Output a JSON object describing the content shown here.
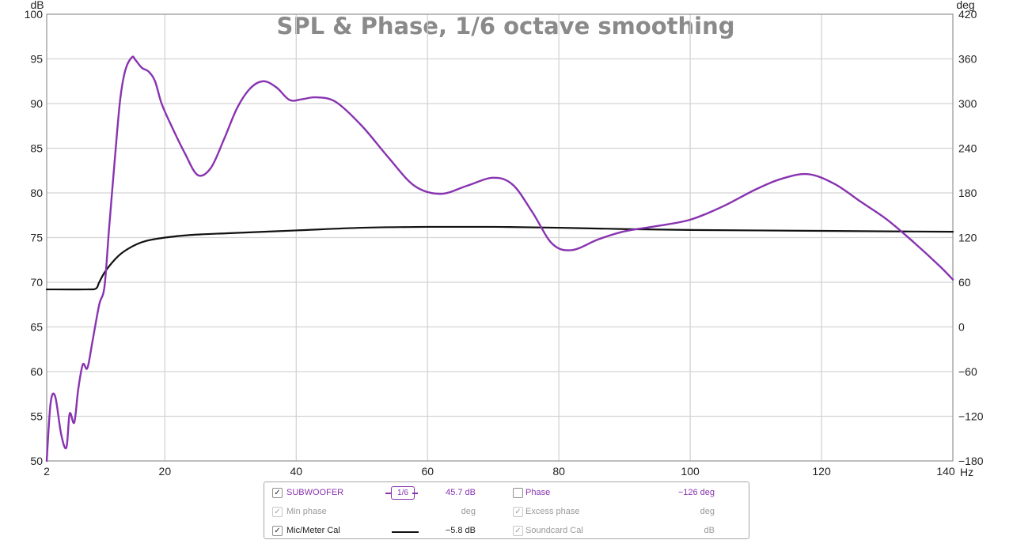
{
  "chart_data": {
    "type": "line",
    "title": "SPL & Phase, 1/6 octave smoothing",
    "y_unit_left": "dB",
    "y_unit_right": "deg",
    "x_unit": "Hz",
    "xlim": [
      2,
      140
    ],
    "ylim": [
      50,
      100
    ],
    "y2lim": [
      -180,
      420
    ],
    "grid": true,
    "x_ticks": [
      2,
      20,
      40,
      60,
      80,
      100,
      120,
      140
    ],
    "y_ticks": [
      50,
      55,
      60,
      65,
      70,
      75,
      80,
      85,
      90,
      95,
      100
    ],
    "y2_ticks": [
      -180,
      -120,
      -60,
      0,
      60,
      120,
      180,
      240,
      300,
      360,
      420
    ],
    "y_tick_labels": [
      "50",
      "55",
      "60",
      "65",
      "70",
      "75",
      "80",
      "85",
      "90",
      "95",
      "100"
    ],
    "y2_tick_labels": [
      "−180",
      "−120",
      "−60",
      "0",
      "60",
      "120",
      "180",
      "240",
      "300",
      "360",
      "420"
    ],
    "series": [
      {
        "name": "SUBWOOFER",
        "color": "#8833b0",
        "x": [
          2.0,
          2.6,
          3.3,
          4.2,
          5.0,
          5.5,
          6.2,
          6.8,
          7.5,
          8.2,
          9.0,
          10.0,
          10.8,
          11.5,
          12.4,
          13.2,
          14.0,
          15.0,
          15.5,
          16.5,
          17.5,
          18.5,
          19.5,
          21.0,
          23.0,
          25.0,
          27.0,
          29.0,
          31.0,
          33.0,
          35.0,
          37.0,
          39.0,
          41.0,
          43.0,
          46.0,
          50.0,
          54.0,
          58.0,
          62.0,
          66.0,
          70.0,
          73.0,
          76.0,
          79.0,
          82.0,
          86.0,
          90.0,
          95.0,
          100.0,
          105.0,
          110.0,
          114.0,
          118.0,
          122.0,
          126.0,
          130.0,
          134.0,
          138.0,
          140.0
        ],
        "y": [
          50.0,
          56.5,
          57.2,
          53.0,
          51.5,
          55.3,
          54.3,
          58.0,
          60.8,
          60.4,
          63.5,
          67.5,
          69.5,
          76.0,
          84.0,
          90.5,
          93.8,
          95.2,
          94.9,
          94.0,
          93.6,
          92.5,
          90.0,
          87.5,
          84.5,
          82.0,
          82.8,
          86.0,
          89.5,
          91.7,
          92.5,
          91.8,
          90.4,
          90.5,
          90.7,
          90.2,
          87.5,
          84.0,
          80.8,
          79.9,
          80.8,
          81.7,
          80.9,
          77.8,
          74.3,
          73.6,
          74.8,
          75.7,
          76.3,
          77.0,
          78.5,
          80.4,
          81.6,
          82.1,
          81.0,
          79.0,
          77.0,
          74.5,
          71.8,
          70.3
        ]
      },
      {
        "name": "Mic/Meter Cal",
        "color": "#111111",
        "x": [
          2.0,
          8.0,
          9.5,
          10.0,
          11.0,
          13.0,
          15.0,
          17.0,
          20.0,
          24.0,
          30.0,
          40.0,
          50.0,
          60.0,
          70.0,
          80.0,
          90.0,
          100.0,
          110.0,
          120.0,
          130.0,
          140.0
        ],
        "y": [
          69.2,
          69.2,
          69.3,
          70.0,
          71.3,
          73.0,
          74.0,
          74.6,
          75.0,
          75.3,
          75.5,
          75.8,
          76.1,
          76.2,
          76.2,
          76.1,
          75.95,
          75.85,
          75.8,
          75.75,
          75.7,
          75.65
        ]
      }
    ]
  },
  "legend": {
    "rows": [
      {
        "left_checked": "✓",
        "left_label": "SUBWOOFER",
        "left_swatch": "smoothing-badge",
        "smoothing_badge": "1/6",
        "left_value": "45.7 dB",
        "right_checked": "",
        "right_label": "Phase",
        "right_value": "−126 deg"
      },
      {
        "left_checked": "✓",
        "left_label": "Min phase",
        "left_value": "deg",
        "right_checked": "✓",
        "right_label": "Excess phase",
        "right_value": "deg"
      },
      {
        "left_checked": "✓",
        "left_label": "Mic/Meter Cal",
        "left_value": "−5.8 dB",
        "right_checked": "✓",
        "right_label": "Soundcard Cal",
        "right_value": "dB"
      }
    ]
  }
}
